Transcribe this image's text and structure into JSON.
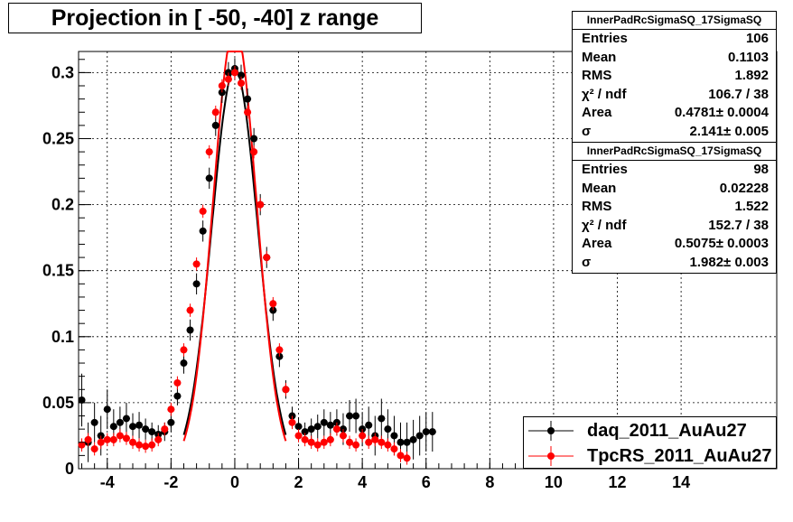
{
  "title": "Projection in [ -50, -40] z range",
  "stats": [
    {
      "name": "InnerPadRcSigmaSQ_17SigmaSQ",
      "rows": [
        {
          "label": "Entries",
          "value": "106"
        },
        {
          "label": "Mean",
          "value": "0.1103"
        },
        {
          "label": "RMS",
          "value": "1.892"
        },
        {
          "label": "χ² / ndf",
          "value": "106.7 / 38"
        },
        {
          "label": "Area",
          "value": "0.4781± 0.0004"
        },
        {
          "label": "σ",
          "value": "2.141± 0.005"
        }
      ]
    },
    {
      "name": "InnerPadRcSigmaSQ_17SigmaSQ",
      "rows": [
        {
          "label": "Entries",
          "value": "98"
        },
        {
          "label": "Mean",
          "value": "0.02228"
        },
        {
          "label": "RMS",
          "value": "1.522"
        },
        {
          "label": "χ² / ndf",
          "value": "152.7 / 38"
        },
        {
          "label": "Area",
          "value": "0.5075± 0.0003"
        },
        {
          "label": "σ",
          "value": "1.982± 0.003"
        }
      ]
    }
  ],
  "legend": [
    {
      "label": "daq_2011_AuAu27",
      "color": "#000000"
    },
    {
      "label": "TpcRS_2011_AuAu27",
      "color": "#ff0000"
    }
  ],
  "chart_data": {
    "type": "scatter",
    "title": "Projection in [ -50, -40] z range",
    "xlabel": "",
    "ylabel": "",
    "xlim": [
      -4.9,
      17
    ],
    "ylim": [
      0,
      0.316
    ],
    "grid": true,
    "legend_position": "bottom-right",
    "x_ticks": [
      -4,
      -2,
      0,
      2,
      4,
      6,
      8,
      10,
      12,
      14
    ],
    "y_ticks": [
      0,
      0.05,
      0.1,
      0.15,
      0.2,
      0.25,
      0.3
    ],
    "y_tick_labels": [
      "0",
      "0.05",
      "0.1",
      "0.15",
      "0.2",
      "0.25",
      "0.3"
    ],
    "series": [
      {
        "name": "daq_2011_AuAu27",
        "color": "#000000",
        "x": [
          -4.8,
          -4.6,
          -4.4,
          -4.2,
          -4.0,
          -3.8,
          -3.6,
          -3.4,
          -3.2,
          -3.0,
          -2.8,
          -2.6,
          -2.4,
          -2.2,
          -2.0,
          -1.8,
          -1.6,
          -1.4,
          -1.2,
          -1.0,
          -0.8,
          -0.6,
          -0.4,
          -0.2,
          0.0,
          0.2,
          0.4,
          0.6,
          0.8,
          1.0,
          1.2,
          1.4,
          1.6,
          1.8,
          2.0,
          2.2,
          2.4,
          2.6,
          2.8,
          3.0,
          3.2,
          3.4,
          3.6,
          3.8,
          4.0,
          4.2,
          4.4,
          4.6,
          4.8,
          5.0,
          5.2,
          5.4,
          5.6,
          5.8,
          6.0,
          6.2
        ],
        "values": [
          0.052,
          0.02,
          0.035,
          0.025,
          0.045,
          0.032,
          0.035,
          0.038,
          0.032,
          0.033,
          0.03,
          0.028,
          0.026,
          0.028,
          0.035,
          0.055,
          0.08,
          0.105,
          0.14,
          0.18,
          0.22,
          0.26,
          0.285,
          0.3,
          0.303,
          0.298,
          0.28,
          0.25,
          0.2,
          0.16,
          0.12,
          0.085,
          0.06,
          0.04,
          0.032,
          0.028,
          0.03,
          0.032,
          0.035,
          0.033,
          0.035,
          0.03,
          0.04,
          0.04,
          0.03,
          0.033,
          0.025,
          0.038,
          0.03,
          0.025,
          0.02,
          0.02,
          0.022,
          0.025,
          0.028,
          0.028
        ],
        "errors": [
          0.02,
          0.015,
          0.015,
          0.015,
          0.015,
          0.013,
          0.012,
          0.012,
          0.01,
          0.01,
          0.008,
          0.007,
          0.007,
          0.007,
          0.007,
          0.007,
          0.008,
          0.008,
          0.008,
          0.008,
          0.008,
          0.008,
          0.008,
          0.008,
          0.008,
          0.008,
          0.008,
          0.008,
          0.008,
          0.008,
          0.008,
          0.008,
          0.007,
          0.007,
          0.007,
          0.007,
          0.008,
          0.009,
          0.01,
          0.01,
          0.01,
          0.012,
          0.012,
          0.013,
          0.013,
          0.014,
          0.015,
          0.015,
          0.015,
          0.015,
          0.015,
          0.015,
          0.015,
          0.015,
          0.015,
          0.015
        ]
      },
      {
        "name": "TpcRS_2011_AuAu27",
        "color": "#ff0000",
        "x": [
          -4.8,
          -4.6,
          -4.4,
          -4.2,
          -4.0,
          -3.8,
          -3.6,
          -3.4,
          -3.2,
          -3.0,
          -2.8,
          -2.6,
          -2.4,
          -2.2,
          -2.0,
          -1.8,
          -1.6,
          -1.4,
          -1.2,
          -1.0,
          -0.8,
          -0.6,
          -0.4,
          -0.2,
          0.0,
          0.2,
          0.4,
          0.6,
          0.8,
          1.0,
          1.2,
          1.4,
          1.6,
          1.8,
          2.0,
          2.2,
          2.4,
          2.6,
          2.8,
          3.0,
          3.2,
          3.4,
          3.6,
          3.8,
          4.0,
          4.2,
          4.4,
          4.6,
          4.8,
          5.0,
          5.2,
          5.4
        ],
        "values": [
          0.018,
          0.022,
          0.015,
          0.02,
          0.022,
          0.022,
          0.025,
          0.023,
          0.02,
          0.018,
          0.017,
          0.018,
          0.022,
          0.03,
          0.045,
          0.065,
          0.09,
          0.12,
          0.155,
          0.195,
          0.24,
          0.27,
          0.29,
          0.295,
          0.3,
          0.292,
          0.27,
          0.24,
          0.2,
          0.16,
          0.125,
          0.09,
          0.06,
          0.035,
          0.025,
          0.022,
          0.02,
          0.018,
          0.02,
          0.022,
          0.03,
          0.025,
          0.02,
          0.018,
          0.025,
          0.02,
          0.022,
          0.02,
          0.018,
          0.015,
          0.01,
          0.008
        ],
        "errors": [
          0.005,
          0.005,
          0.005,
          0.005,
          0.005,
          0.005,
          0.005,
          0.005,
          0.005,
          0.005,
          0.005,
          0.005,
          0.005,
          0.005,
          0.005,
          0.005,
          0.005,
          0.005,
          0.005,
          0.005,
          0.005,
          0.005,
          0.005,
          0.005,
          0.005,
          0.005,
          0.005,
          0.005,
          0.005,
          0.005,
          0.005,
          0.005,
          0.005,
          0.005,
          0.005,
          0.005,
          0.005,
          0.005,
          0.005,
          0.005,
          0.005,
          0.005,
          0.005,
          0.005,
          0.005,
          0.005,
          0.005,
          0.005,
          0.005,
          0.005,
          0.005,
          0.005
        ]
      }
    ],
    "fits": [
      {
        "series": "daq_2011_AuAu27",
        "function": "gaussian",
        "peak": 0.303,
        "sigma": 0.72,
        "mean": 0.0,
        "color": "#000000"
      },
      {
        "series": "TpcRS_2011_AuAu27",
        "function": "gaussian",
        "peak": 0.335,
        "sigma": 0.68,
        "mean": 0.0,
        "color": "#ff0000"
      }
    ]
  }
}
